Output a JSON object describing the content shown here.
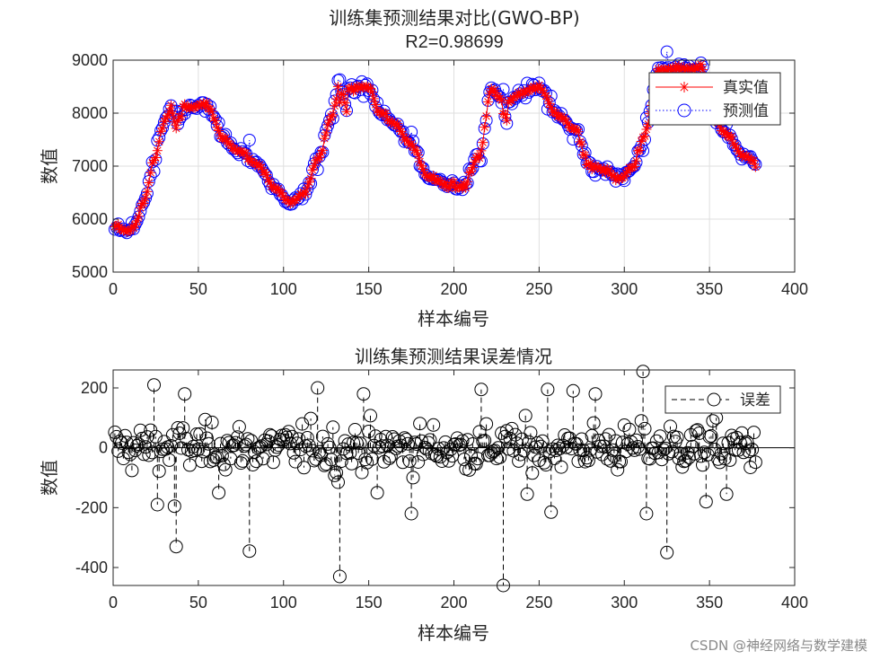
{
  "chart_data": [
    {
      "type": "line",
      "title": "训练集预测结果对比(GWO-BP)",
      "subtitle": "R2=0.98699",
      "xlabel": "样本编号",
      "ylabel": "数值",
      "xlim": [
        0,
        400
      ],
      "ylim": [
        5000,
        9000
      ],
      "xticks": [
        "0",
        "50",
        "100",
        "150",
        "200",
        "250",
        "300",
        "350",
        "400"
      ],
      "yticks": [
        "5000",
        "6000",
        "7000",
        "8000",
        "9000"
      ],
      "grid": true,
      "legend_position": "top-right",
      "keypoints_x": [
        0,
        8,
        12,
        18,
        24,
        30,
        35,
        45,
        55,
        65,
        75,
        85,
        95,
        105,
        112,
        120,
        128,
        133,
        140,
        150,
        157,
        165,
        175,
        185,
        195,
        205,
        215,
        222,
        230,
        240,
        250,
        260,
        270,
        280,
        290,
        298,
        305,
        312,
        320,
        330,
        340,
        345,
        350,
        360,
        370,
        377
      ],
      "keypoints_y": [
        5900,
        5750,
        5850,
        6300,
        7100,
        7800,
        8150,
        8100,
        8150,
        7500,
        7250,
        7000,
        6600,
        6300,
        6500,
        7100,
        7900,
        8550,
        8450,
        8500,
        8000,
        7800,
        7400,
        6800,
        6650,
        6600,
        7200,
        8450,
        8150,
        8400,
        8500,
        8000,
        7750,
        7000,
        6900,
        6750,
        7000,
        7600,
        8800,
        8850,
        8850,
        8900,
        8100,
        7600,
        7200,
        7050
      ],
      "series": [
        {
          "name": "真实值",
          "color": "#ff0000",
          "marker": "asterisk",
          "line": "solid"
        },
        {
          "name": "预测值",
          "color": "#0000ff",
          "marker": "circle",
          "line": "dotted"
        }
      ]
    },
    {
      "type": "stem",
      "title": "训练集预测结果误差情况",
      "xlabel": "样本编号",
      "ylabel": "数值",
      "xlim": [
        0,
        400
      ],
      "ylim": [
        -460,
        260
      ],
      "xticks": [
        "0",
        "50",
        "100",
        "150",
        "200",
        "250",
        "300",
        "350",
        "400"
      ],
      "yticks": [
        "-400",
        "-200",
        "0",
        "200"
      ],
      "baseline": 0,
      "legend_position": "top-right",
      "n_samples": 377,
      "series": [
        {
          "name": "误差",
          "color": "#000000",
          "marker": "circle",
          "line": "dashed"
        }
      ],
      "notable_errors": [
        {
          "x": 24,
          "y": 210
        },
        {
          "x": 26,
          "y": -190
        },
        {
          "x": 37,
          "y": -330
        },
        {
          "x": 36,
          "y": -195
        },
        {
          "x": 42,
          "y": 180
        },
        {
          "x": 62,
          "y": -150
        },
        {
          "x": 80,
          "y": -345
        },
        {
          "x": 120,
          "y": 200
        },
        {
          "x": 133,
          "y": -430
        },
        {
          "x": 132,
          "y": -115
        },
        {
          "x": 147,
          "y": 180
        },
        {
          "x": 155,
          "y": -150
        },
        {
          "x": 175,
          "y": -220
        },
        {
          "x": 216,
          "y": 195
        },
        {
          "x": 229,
          "y": -460
        },
        {
          "x": 243,
          "y": -155
        },
        {
          "x": 255,
          "y": 195
        },
        {
          "x": 257,
          "y": -215
        },
        {
          "x": 270,
          "y": 190
        },
        {
          "x": 283,
          "y": 180
        },
        {
          "x": 311,
          "y": 255
        },
        {
          "x": 313,
          "y": -220
        },
        {
          "x": 325,
          "y": -350
        },
        {
          "x": 348,
          "y": -180
        },
        {
          "x": 360,
          "y": -155
        },
        {
          "x": 352,
          "y": 90
        }
      ]
    }
  ],
  "watermark": "CSDN @神经网络与数学建模"
}
